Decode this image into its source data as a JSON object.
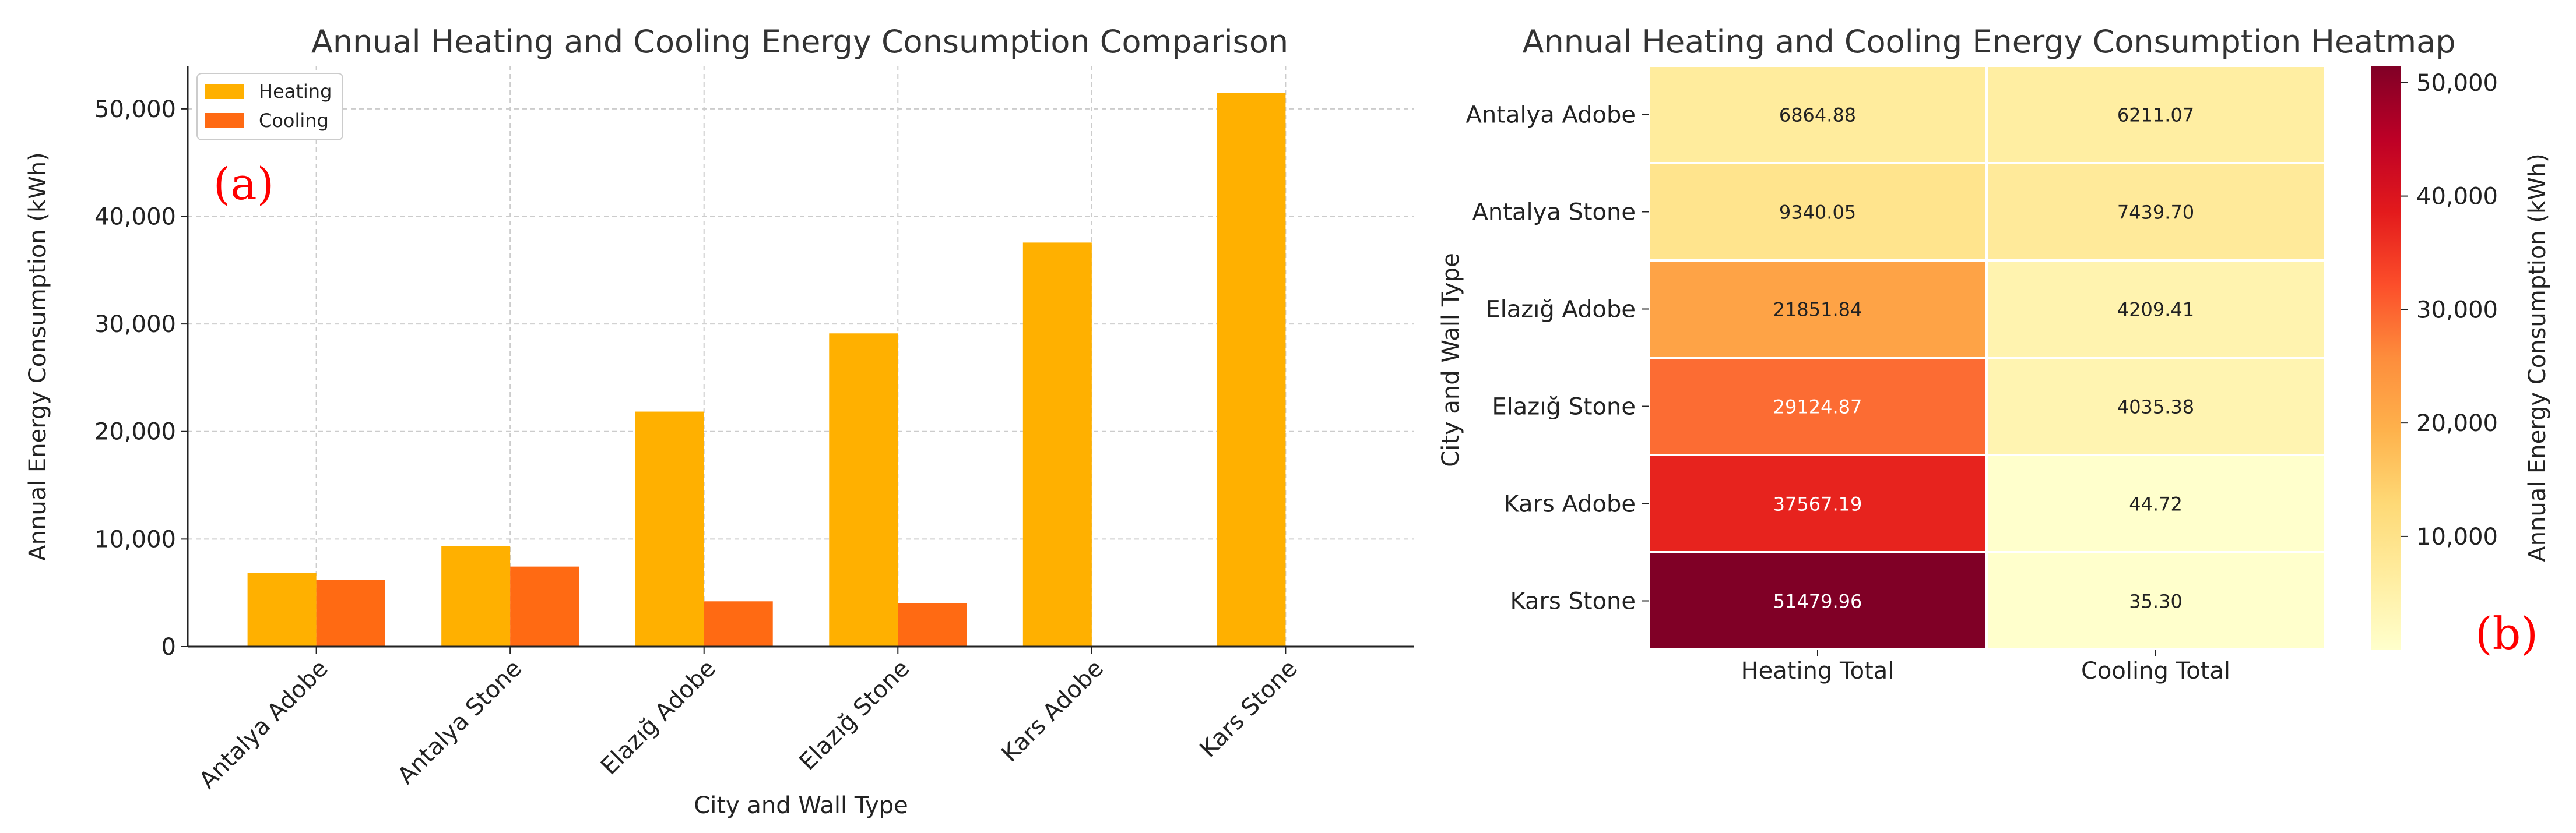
{
  "chart_data": [
    {
      "type": "bar",
      "panel_label": "(a)",
      "title": "Annual Heating and Cooling Energy Consumption Comparison",
      "xlabel": "City and Wall Type",
      "ylabel": "Annual Energy Consumption (kWh)",
      "categories": [
        "Antalya Adobe",
        "Antalya Stone",
        "Elazığ Adobe",
        "Elazığ Stone",
        "Kars Adobe",
        "Kars Stone"
      ],
      "series": [
        {
          "name": "Heating",
          "color": "#FFB000",
          "values": [
            6864.88,
            9340.05,
            21851.84,
            29124.87,
            37567.19,
            51479.96
          ]
        },
        {
          "name": "Cooling",
          "color": "#FF6A13",
          "values": [
            6211.07,
            7439.7,
            4209.41,
            4035.38,
            44.72,
            35.3
          ]
        }
      ],
      "ylim": [
        0,
        54000
      ],
      "yticks": [
        0,
        10000,
        20000,
        30000,
        40000,
        50000
      ],
      "ytick_labels": [
        "0",
        "10,000",
        "20,000",
        "30,000",
        "40,000",
        "50,000"
      ],
      "grid": true,
      "legend_position": "top-left"
    },
    {
      "type": "heatmap",
      "panel_label": "(b)",
      "title": "Annual Heating and Cooling Energy Consumption Heatmap",
      "ylabel": "City and Wall Type",
      "rows": [
        "Antalya Adobe",
        "Antalya Stone",
        "Elazığ Adobe",
        "Elazığ Stone",
        "Kars Adobe",
        "Kars Stone"
      ],
      "columns": [
        "Heating Total",
        "Cooling Total"
      ],
      "values": [
        [
          6864.88,
          6211.07
        ],
        [
          9340.05,
          7439.7
        ],
        [
          21851.84,
          4209.41
        ],
        [
          29124.87,
          4035.38
        ],
        [
          37567.19,
          44.72
        ],
        [
          51479.96,
          35.3
        ]
      ],
      "value_labels": [
        [
          "6864.88",
          "6211.07"
        ],
        [
          "9340.05",
          "7439.70"
        ],
        [
          "21851.84",
          "4209.41"
        ],
        [
          "29124.87",
          "4035.38"
        ],
        [
          "37567.19",
          "44.72"
        ],
        [
          "51479.96",
          "35.30"
        ]
      ],
      "colorbar": {
        "label": "Annual Energy Consumption (kWh)",
        "range": [
          35.3,
          51479.96
        ],
        "ticks": [
          10000,
          20000,
          30000,
          40000,
          50000
        ],
        "tick_labels": [
          "10,000",
          "20,000",
          "30,000",
          "40,000",
          "50,000"
        ],
        "colormap": "YlOrRd"
      }
    }
  ]
}
